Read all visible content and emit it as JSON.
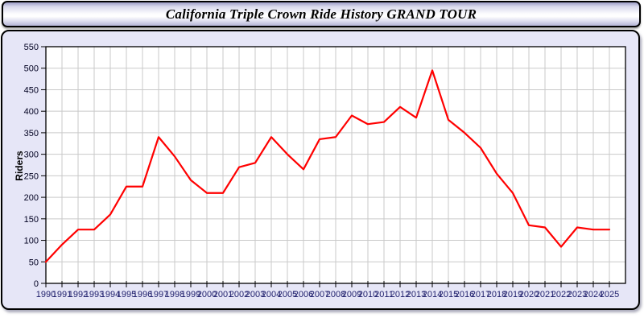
{
  "header": {
    "title": "California Triple Crown Ride History GRAND TOUR"
  },
  "chart_data": {
    "type": "line",
    "title": "California Triple Crown Ride History GRAND TOUR",
    "xlabel": "",
    "ylabel": "Riders",
    "x": [
      1990,
      1991,
      1992,
      1993,
      1994,
      1995,
      1996,
      1997,
      1998,
      1999,
      2000,
      2001,
      2002,
      2003,
      2004,
      2005,
      2006,
      2007,
      2008,
      2009,
      2010,
      2011,
      2012,
      2013,
      2014,
      2015,
      2016,
      2017,
      2018,
      2019,
      2020,
      2021,
      2022,
      2023,
      2024,
      2025
    ],
    "series": [
      {
        "name": "Riders",
        "color": "#ff0000",
        "values": [
          50,
          90,
          125,
          125,
          160,
          225,
          225,
          340,
          295,
          240,
          210,
          210,
          270,
          280,
          340,
          300,
          265,
          335,
          340,
          390,
          370,
          375,
          410,
          385,
          495,
          380,
          350,
          315,
          255,
          210,
          135,
          130,
          85,
          130,
          125,
          125
        ]
      }
    ],
    "ylim": [
      0,
      550
    ],
    "yticks": [
      0,
      50,
      100,
      150,
      200,
      250,
      300,
      350,
      400,
      450,
      500,
      550
    ],
    "grid": true,
    "legend": "none",
    "plot_bg": "#ffffff",
    "grid_color": "#c9c9c9",
    "frame_color": "#000000",
    "x_tick_label_color": "#22226e",
    "y_tick_label_color": "#000020"
  },
  "colors": {
    "page_bg": "#ffffff",
    "panel_bg": "#e6e6f7",
    "border": "#000000",
    "line": "#ff0000"
  }
}
